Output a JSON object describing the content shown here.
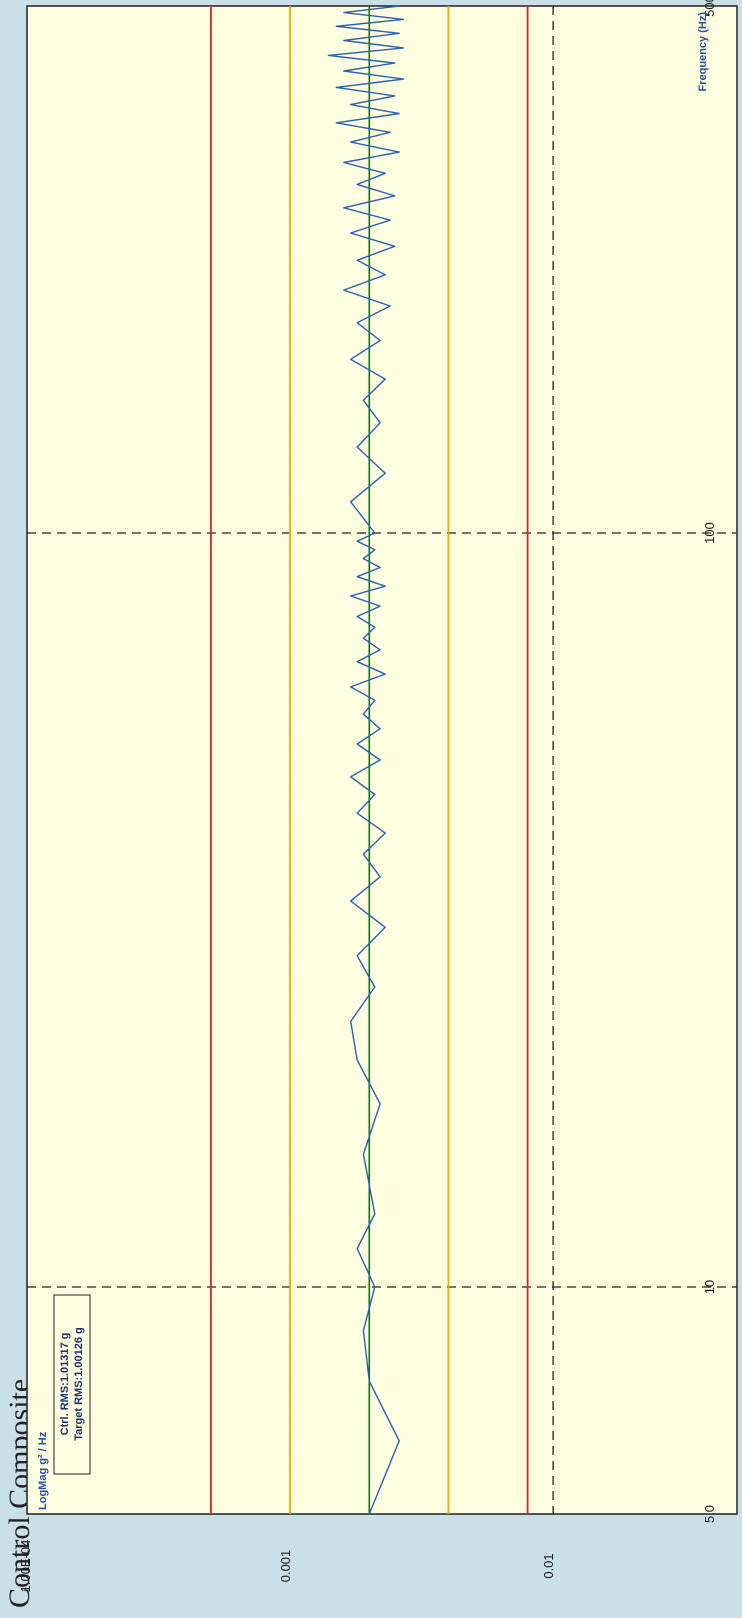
{
  "title": "Control Composite",
  "chart_data": {
    "type": "line",
    "title": "Control Composite",
    "xlabel": "Frequency (Hz)",
    "ylabel": "LogMag g² / Hz",
    "xscale": "log",
    "yscale": "log",
    "xlim": [
      5,
      500
    ],
    "ylim": [
      0.0001,
      0.05
    ],
    "x_ticks": [
      "5.0",
      "10",
      "100",
      "500"
    ],
    "y_ticks": [
      "1.00E-04",
      "0.001",
      "0.01"
    ],
    "grid": "dashed black at major decades",
    "legend": {
      "placement": "top-left",
      "entries": [
        "Ctrl. RMS:1.01317 g",
        "Target RMS:1.00126 g"
      ]
    },
    "series": [
      {
        "role": "target",
        "color": "#1a6b1a",
        "x": [
          5,
          500
        ],
        "y": [
          0.002,
          0.002
        ]
      },
      {
        "role": "upper-abort",
        "color": "#e32222",
        "x": [
          5,
          500
        ],
        "y": [
          0.008,
          0.008
        ]
      },
      {
        "role": "upper-alarm",
        "color": "#f2aa00",
        "x": [
          5,
          500
        ],
        "y": [
          0.004,
          0.004
        ]
      },
      {
        "role": "lower-alarm",
        "color": "#f2aa00",
        "x": [
          5,
          500
        ],
        "y": [
          0.001,
          0.001
        ]
      },
      {
        "role": "lower-abort",
        "color": "#e32222",
        "x": [
          5,
          500
        ],
        "y": [
          0.0005,
          0.0005
        ]
      },
      {
        "role": "control",
        "color": "#2b5fb5",
        "x": [
          5,
          6.25,
          7.5,
          8.75,
          10,
          11.25,
          12.5,
          15,
          17.5,
          20,
          22.5,
          25,
          27.5,
          30,
          32.5,
          35,
          37.5,
          40,
          42.5,
          45,
          47.5,
          50,
          52.5,
          55,
          57.5,
          60,
          62.5,
          65,
          67.5,
          70,
          72.5,
          75,
          77.5,
          80,
          82.5,
          85,
          87.5,
          90,
          92.5,
          95,
          97.5,
          100,
          110,
          120,
          130,
          140,
          150,
          160,
          170,
          180,
          190,
          200,
          210,
          220,
          230,
          240,
          250,
          260,
          270,
          280,
          290,
          300,
          310,
          320,
          330,
          340,
          350,
          360,
          370,
          380,
          390,
          400,
          410,
          420,
          430,
          440,
          450,
          460,
          470,
          480,
          490,
          500
        ],
        "y": [
          0.002,
          0.0026,
          0.002,
          0.0019,
          0.0021,
          0.0018,
          0.0021,
          0.0019,
          0.0022,
          0.0018,
          0.0017,
          0.0021,
          0.0018,
          0.0023,
          0.0017,
          0.0022,
          0.0019,
          0.0023,
          0.0018,
          0.0021,
          0.0017,
          0.0022,
          0.0018,
          0.0022,
          0.0019,
          0.0021,
          0.0017,
          0.0023,
          0.0018,
          0.0022,
          0.0019,
          0.0021,
          0.0018,
          0.0022,
          0.0017,
          0.0023,
          0.0018,
          0.0022,
          0.0019,
          0.0021,
          0.0018,
          0.0021,
          0.0017,
          0.0023,
          0.0018,
          0.0022,
          0.0019,
          0.0023,
          0.0017,
          0.0022,
          0.0018,
          0.0024,
          0.0016,
          0.0023,
          0.0018,
          0.0025,
          0.0017,
          0.0024,
          0.0016,
          0.0025,
          0.0018,
          0.0023,
          0.0016,
          0.0026,
          0.0017,
          0.0024,
          0.0015,
          0.0026,
          0.0017,
          0.0025,
          0.0015,
          0.0027,
          0.0016,
          0.0025,
          0.0014,
          0.0027,
          0.0016,
          0.0026,
          0.0015,
          0.0027,
          0.0016,
          0.0026
        ]
      }
    ]
  }
}
